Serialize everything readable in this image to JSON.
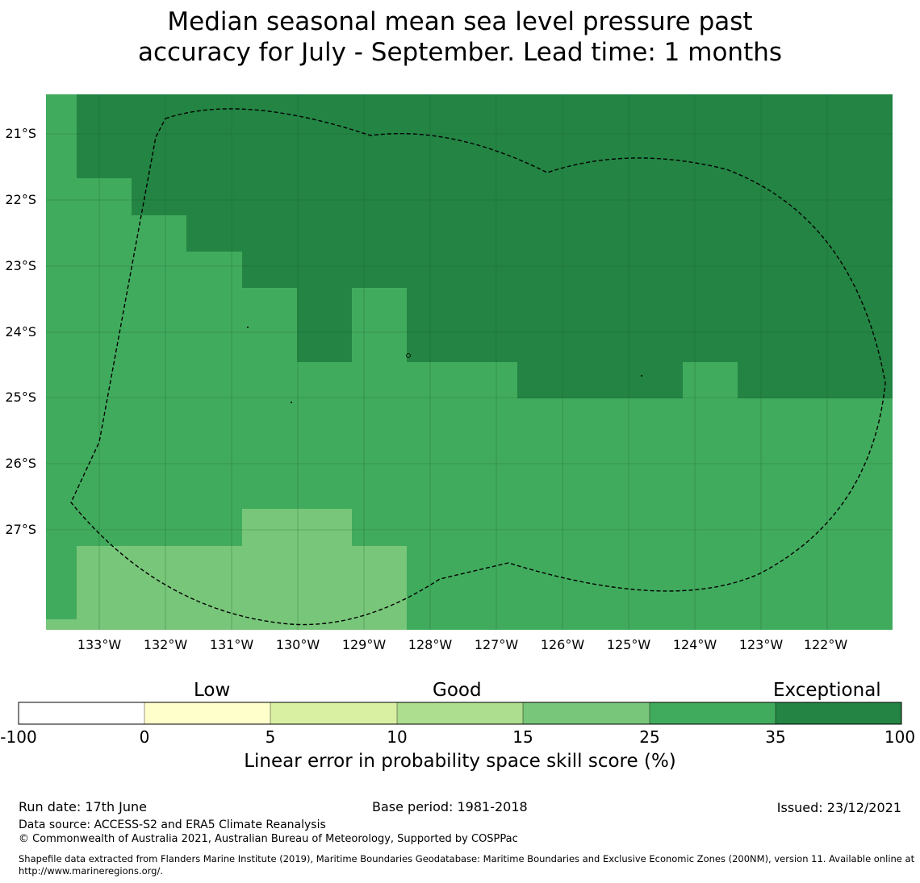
{
  "title": {
    "line1": "Median seasonal mean sea level pressure past",
    "line2": "accuracy for July - September. Lead time: 1 months"
  },
  "map": {
    "lat_ticks": [
      "21°S",
      "22°S",
      "23°S",
      "24°S",
      "25°S",
      "26°S",
      "27°S"
    ],
    "lon_ticks": [
      "133°W",
      "132°W",
      "131°W",
      "130°W",
      "129°W",
      "128°W",
      "127°W",
      "126°W",
      "125°W",
      "124°W",
      "123°W",
      "122°W"
    ],
    "grid_lines": true,
    "boundary": "dashed EEZ outline (200NM)",
    "colors": {
      "exceptional": "#238443",
      "very_good": "#41ab5d",
      "good": "#78c679",
      "grid": "#1a5e30",
      "boundary": "#000000"
    }
  },
  "colorbar": {
    "categories": [
      "Low",
      "Good",
      "Exceptional"
    ],
    "bins": [
      {
        "from": -100,
        "to": 0,
        "color": "#ffffff"
      },
      {
        "from": 0,
        "to": 5,
        "color": "#ffffcc"
      },
      {
        "from": 5,
        "to": 10,
        "color": "#d9f0a3"
      },
      {
        "from": 10,
        "to": 15,
        "color": "#addd8e"
      },
      {
        "from": 15,
        "to": 25,
        "color": "#78c679"
      },
      {
        "from": 25,
        "to": 35,
        "color": "#41ab5d"
      },
      {
        "from": 35,
        "to": 100,
        "color": "#238443"
      }
    ],
    "tick_labels": [
      "-100",
      "0",
      "5",
      "10",
      "15",
      "25",
      "35",
      "100"
    ],
    "label": "Linear error in probability space skill score (%)"
  },
  "footer": {
    "run_date": "Run date: 17th June",
    "base_period": "Base period: 1981-2018",
    "issued": "Issued: 23/12/2021",
    "data_source": "Data source: ACCESS-S2 and ERA5 Climate Reanalysis",
    "copyright": "© Commonwealth of Australia 2021, Australian Bureau of Meteorology, Supported by COSPPac",
    "shapefile": "Shapefile data extracted from Flanders Marine Institute (2019), Maritime Boundaries Geodatabase: Maritime Boundaries and Exclusive Economic Zones (200NM), version 11. Available online at http://www.marineregions.org/."
  }
}
